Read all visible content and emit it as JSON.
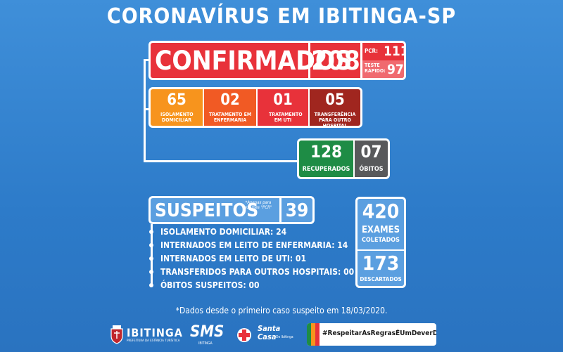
{
  "title": "CORONAVÍRUS EM IBITINGA-SP",
  "confirmados": {
    "label": "CONFIRMADOS",
    "total": "208",
    "pcr_label": "PCR:",
    "pcr_value": "111",
    "teste_label": "TESTE RÁPIDO:",
    "teste_value": "97"
  },
  "status": [
    {
      "value": "65",
      "label": "ISOLAMENTO DOMICILIAR",
      "color": "#f7941d"
    },
    {
      "value": "02",
      "label": "TRATAMENTO EM ENFERMARIA",
      "color": "#f15a24"
    },
    {
      "value": "01",
      "label": "TRATAMENTO EM UTI",
      "color": "#e8323a"
    },
    {
      "value": "05",
      "label": "TRANSFERÊNCIA PARA OUTRO HOSPITAL",
      "color": "#a0261f"
    }
  ],
  "recuperados": {
    "value": "128",
    "label": "RECUPERADOS",
    "color": "#1e8c45"
  },
  "obitos": {
    "value": "07",
    "label": "ÓBITOS",
    "color": "#58595b"
  },
  "suspeitos": {
    "label": "SUSPEITOS",
    "note": "*Apenas para exames \"PCR\"",
    "value": "39",
    "items": [
      "ISOLAMENTO DOMICILIAR: 24",
      "INTERNADOS EM LEITO DE ENFERMARIA: 14",
      "INTERNADOS EM LEITO DE UTI: 01",
      "TRANSFERIDOS PARA OUTROS HOSPITAIS: 00",
      "ÓBITOS SUSPEITOS: 00"
    ]
  },
  "exames": {
    "value": "420",
    "label1": "EXAMES",
    "label2": "COLETADOS",
    "descartados_value": "173",
    "descartados_label": "DESCARTADOS"
  },
  "footnote": "*Dados desde o primeiro caso suspeito em 18/03/2020.",
  "footer": {
    "ibitinga": "IBITINGA",
    "ibitinga_sub": "PREFEITURA DA ESTÂNCIA TURÍSTICA",
    "sms": "SMS",
    "sms_sub": "IBITINGA",
    "santa": "Santa",
    "casa": "Casa",
    "casa_sub": "De Ibitinga",
    "hashtag": "#RespeitarAsRegrasÉUmDeverDeTodos"
  },
  "colors": {
    "background": "#2d7bc9",
    "confirmados": "#e8323a",
    "panel_light": "#5b9fe0"
  }
}
